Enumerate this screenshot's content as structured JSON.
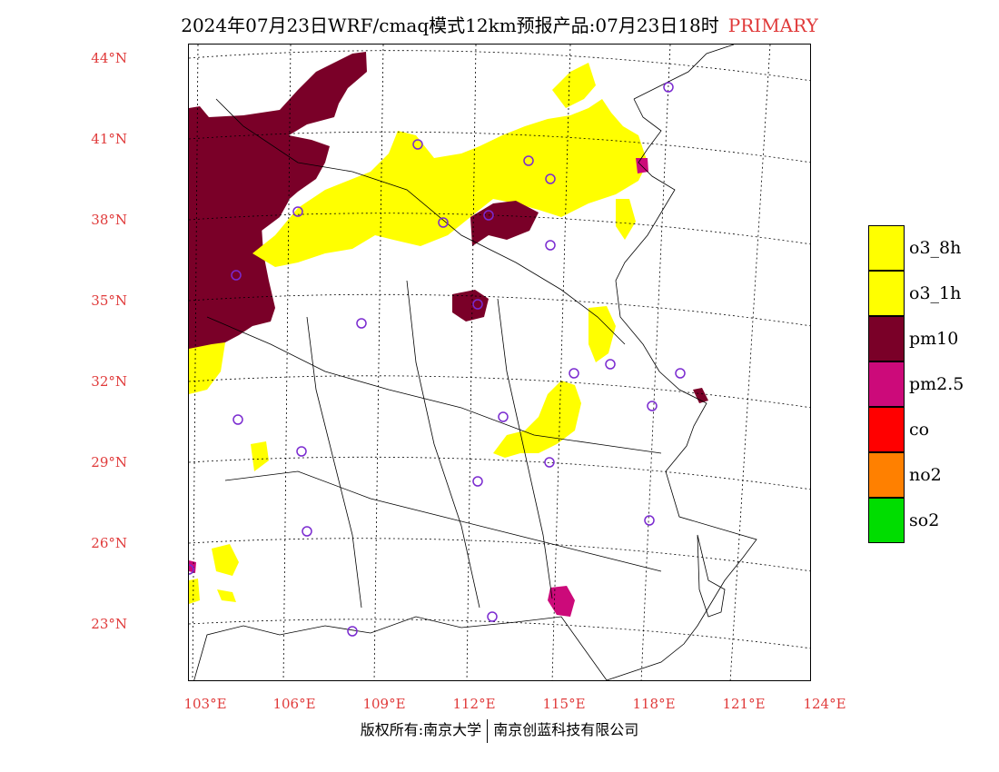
{
  "title": {
    "main": "2024年07月23日WRF/cmaq模式12km预报产品:07月23日18时",
    "tag": "PRIMARY"
  },
  "axes": {
    "lat_labels": [
      "44°N",
      "41°N",
      "38°N",
      "35°N",
      "32°N",
      "29°N",
      "26°N",
      "23°N"
    ],
    "lon_labels": [
      "103°E",
      "106°E",
      "109°E",
      "112°E",
      "115°E",
      "118°E",
      "121°E",
      "124°E"
    ]
  },
  "legend": {
    "items": [
      {
        "label": "o3_8h",
        "color": "#ffff00"
      },
      {
        "label": "o3_1h",
        "color": "#ffff00"
      },
      {
        "label": "pm10",
        "color": "#7a0028"
      },
      {
        "label": "pm2.5",
        "color": "#cc0a7a"
      },
      {
        "label": "co",
        "color": "#ff0000"
      },
      {
        "label": "no2",
        "color": "#ff8000"
      },
      {
        "label": "so2",
        "color": "#00dd00"
      }
    ]
  },
  "footer": {
    "left": "版权所有:南京大学",
    "right": "南京创蓝科技有限公司"
  },
  "colors": {
    "axis_label": "#e03a3a",
    "station_marker": "#7a2ad0"
  },
  "icons": [
    "station-circle-icon"
  ]
}
